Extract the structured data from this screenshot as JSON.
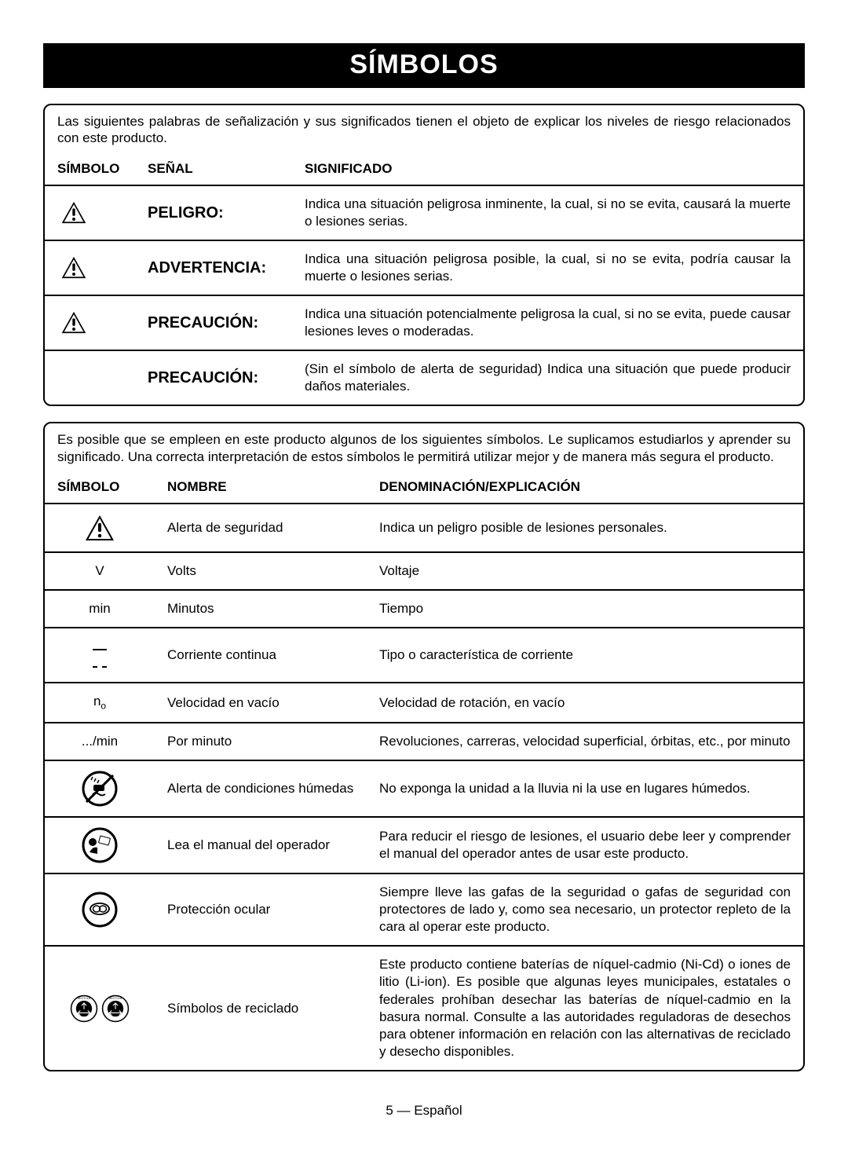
{
  "title": "SÍMBOLOS",
  "box1": {
    "intro": "Las siguientes palabras de señalización y sus significados tienen el objeto de explicar los niveles de riesgo relacionados con este producto.",
    "headers": {
      "symbol": "SÍMBOLO",
      "signal": "SEÑAL",
      "meaning": "SIGNIFICADO"
    },
    "rows": [
      {
        "hasIcon": true,
        "signal": "PELIGRO:",
        "meaning": "Indica una situación peligrosa inminente, la cual, si no se evita, causará la muerte o lesiones serias."
      },
      {
        "hasIcon": true,
        "signal": "ADVERTENCIA:",
        "meaning": "Indica una situación peligrosa posible, la cual, si no se evita, podría causar la muerte o lesiones serias."
      },
      {
        "hasIcon": true,
        "signal": "PRECAUCIÓN:",
        "meaning": "Indica una situación potencialmente peligrosa la cual, si no se evita, puede causar lesiones leves o moderadas."
      },
      {
        "hasIcon": false,
        "signal": "PRECAUCIÓN:",
        "meaning": "(Sin el símbolo de alerta de seguridad) Indica una situación que puede producir daños materiales."
      }
    ]
  },
  "box2": {
    "intro": "Es posible que se empleen en este producto algunos de los siguientes símbolos. Le suplicamos estudiarlos y aprender su significado. Una correcta interpretación de estos símbolos le permitirá utilizar mejor y de manera más segura el producto.",
    "headers": {
      "symbol": "SÍMBOLO",
      "name": "NOMBRE",
      "expl": "DENOMINACIÓN/EXPLICACIÓN"
    },
    "rows": [
      {
        "icon": "alert",
        "name": "Alerta de seguridad",
        "expl": "Indica un peligro posible de lesiones personales."
      },
      {
        "icon": "V",
        "name": "Volts",
        "expl": "Voltaje"
      },
      {
        "icon": "min",
        "name": "Minutos",
        "expl": "Tiempo"
      },
      {
        "icon": "dc",
        "name": "Corriente continua",
        "expl": "Tipo o característica de corriente"
      },
      {
        "icon": "no",
        "name": "Velocidad en vacío",
        "expl": "Velocidad de rotación, en vacío"
      },
      {
        "icon": "permin",
        "name": "Por minuto",
        "expl": "Revoluciones, carreras, velocidad superficial, órbitas, etc., por minuto"
      },
      {
        "icon": "wet",
        "name": "Alerta de condiciones húmedas",
        "expl": "No exponga la unidad a la lluvia ni la use en lugares húmedos."
      },
      {
        "icon": "manual",
        "name": "Lea el manual del operador",
        "expl": "Para reducir el riesgo de lesiones, el usuario debe leer y comprender el manual del operador antes de usar este producto."
      },
      {
        "icon": "eye",
        "name": "Protección ocular",
        "expl": "Siempre lleve las gafas de la seguridad o gafas de seguridad con protectores de lado y, como sea necesario, un protector repleto de la cara al operar este producto."
      },
      {
        "icon": "recycle",
        "name": "Símbolos de reciclado",
        "expl": "Este producto contiene baterías de níquel-cadmio (Ni-Cd) o iones de litio (Li-ion). Es posible que algunas leyes municipales, estatales o federales prohíban desechar las baterías de níquel-cadmio en la basura normal. Consulte a las autoridades reguladoras de desechos para obtener información en relación con las alternativas de reciclado y desecho disponibles."
      }
    ],
    "permin_label": ".../min"
  },
  "footer": "5 — Español"
}
